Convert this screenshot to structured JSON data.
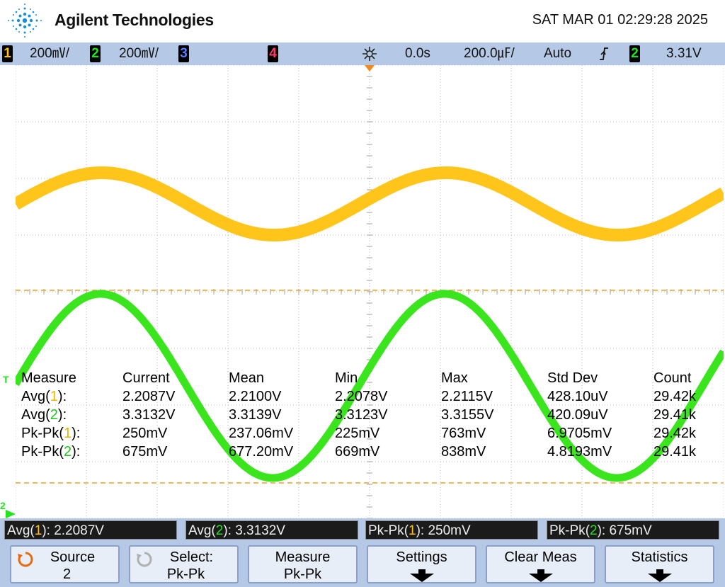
{
  "header": {
    "brand": "Agilent Technologies",
    "datetime": "SAT MAR 01 02:29:28 2025"
  },
  "status_bar": {
    "ch1_num": "1",
    "ch1_scale": "200㎷/",
    "ch2_num": "2",
    "ch2_scale": "200㎷/",
    "ch3_num": "3",
    "ch4_num": "4",
    "time_delay": "0.0s",
    "time_scale": "200.0㎌/",
    "trigger_mode": "Auto",
    "trigger_slope_icon": "rising-edge-icon",
    "trigger_source_num": "2",
    "trigger_level": "3.31V",
    "colors": {
      "ch1": "#ffc20e",
      "ch2": "#22e41e",
      "ch3": "#5a7bff",
      "ch4": "#ff3a6e"
    }
  },
  "screen": {
    "ch2_marker": "T",
    "ch2_ground_marker": "2"
  },
  "measurements": {
    "headers": [
      "Measure",
      "Current",
      "Mean",
      "Min",
      "Max",
      "Std Dev",
      "Count"
    ],
    "rows": [
      {
        "name": "Avg",
        "ch": "1",
        "suffix": "):",
        "current": "2.2087V",
        "mean": "2.2100V",
        "min": "2.2078V",
        "max": "2.2115V",
        "stddev": "428.10uV",
        "count": "29.42k"
      },
      {
        "name": "Avg",
        "ch": "2",
        "suffix": "):",
        "current": "3.3132V",
        "mean": "3.3139V",
        "min": "3.3123V",
        "max": "3.3155V",
        "stddev": "420.09uV",
        "count": "29.41k"
      },
      {
        "name": "Pk-Pk",
        "ch": "1",
        "suffix": "):",
        "current": "250mV",
        "mean": "237.06mV",
        "min": "225mV",
        "max": "763mV",
        "stddev": "6.9705mV",
        "count": "29.42k"
      },
      {
        "name": "Pk-Pk",
        "ch": "2",
        "suffix": "):",
        "current": "675mV",
        "mean": "677.20mV",
        "min": "669mV",
        "max": "838mV",
        "stddev": "4.8193mV",
        "count": "29.41k"
      }
    ]
  },
  "summary": [
    {
      "name": "Avg",
      "ch": "1",
      "value": "): 2.2087V"
    },
    {
      "name": "Avg",
      "ch": "2",
      "value": "): 3.3132V"
    },
    {
      "name": "Pk-Pk",
      "ch": "1",
      "value": "): 250mV"
    },
    {
      "name": "Pk-Pk",
      "ch": "2",
      "value": "): 675mV"
    }
  ],
  "softkeys": [
    {
      "line1": "Source",
      "line2": "2",
      "icon": "rotary-knob-icon",
      "icon_color": "#e86a10"
    },
    {
      "line1": "Select:",
      "line2": "Pk-Pk",
      "icon": "rotary-knob-icon",
      "icon_color": "#b0b0b0"
    },
    {
      "line1": "Measure",
      "line2": "Pk-Pk"
    },
    {
      "line1": "Settings",
      "line2": "",
      "submenu": "down-arrow-icon"
    },
    {
      "line1": "Clear Meas",
      "line2": "",
      "submenu": "down-arrow-icon"
    },
    {
      "line1": "Statistics",
      "line2": "",
      "submenu": "down-arrow-icon"
    }
  ]
}
